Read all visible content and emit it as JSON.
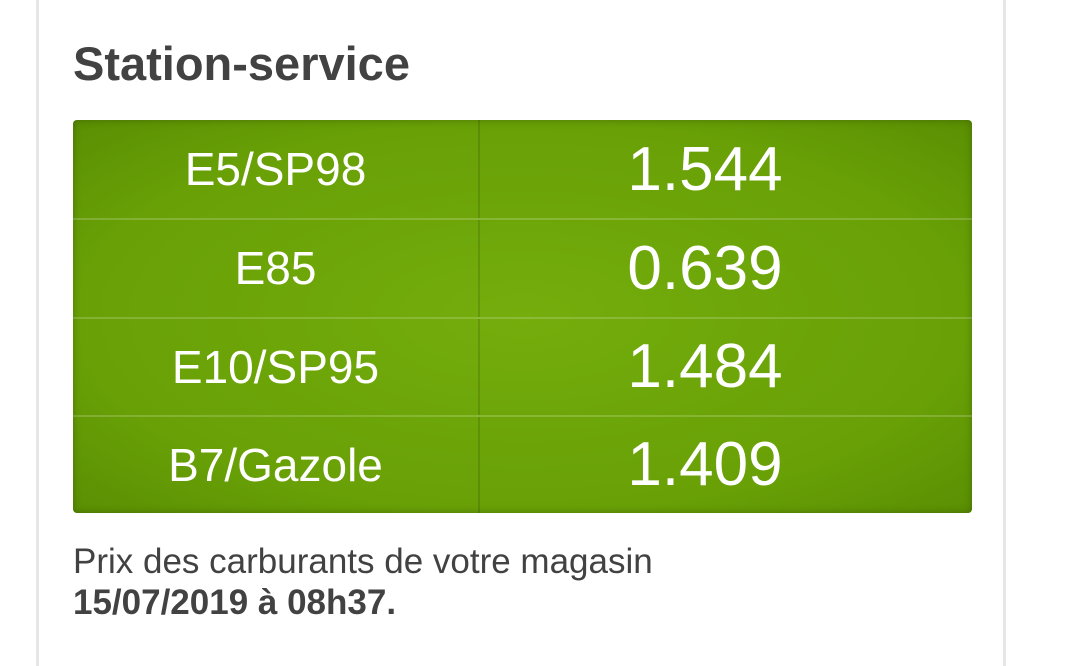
{
  "header": {
    "title": "Station-service"
  },
  "table": {
    "rows": [
      [
        "E5/SP98",
        "1.544"
      ],
      [
        "E85",
        "0.639"
      ],
      [
        "E10/SP95",
        "1.484"
      ],
      [
        "B7/Gazole",
        "1.409"
      ]
    ]
  },
  "footer": {
    "text": "Prix des carburants de votre magasin",
    "date": "15/07/2019 à 08h37."
  }
}
